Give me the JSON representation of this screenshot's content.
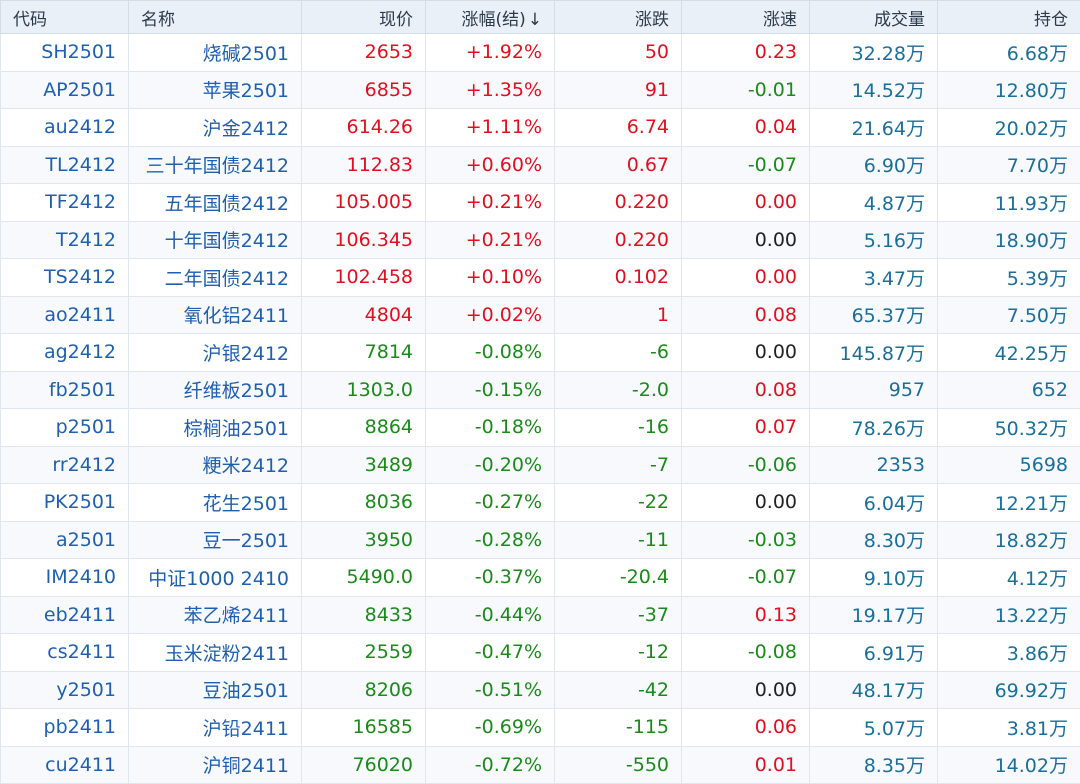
{
  "header": {
    "code": "代码",
    "name": "名称",
    "price": "现价",
    "pct": "涨幅(结)",
    "pct_sort_arrow": "↓",
    "change": "涨跌",
    "speed": "涨速",
    "volume": "成交量",
    "oi": "持仓"
  },
  "colors": {
    "up": "#e0101e",
    "down": "#1a8a1a",
    "flat": "#222222",
    "link": "#1f5fb0"
  },
  "rows": [
    {
      "code": "SH2501",
      "name": "烧碱2501",
      "price": "2653",
      "pct": "+1.92%",
      "change": "50",
      "speed": "0.23",
      "volume": "32.28万",
      "oi": "6.68万",
      "trend": "up",
      "speed_trend": "up"
    },
    {
      "code": "AP2501",
      "name": "苹果2501",
      "price": "6855",
      "pct": "+1.35%",
      "change": "91",
      "speed": "-0.01",
      "volume": "14.52万",
      "oi": "12.80万",
      "trend": "up",
      "speed_trend": "down"
    },
    {
      "code": "au2412",
      "name": "沪金2412",
      "price": "614.26",
      "pct": "+1.11%",
      "change": "6.74",
      "speed": "0.04",
      "volume": "21.64万",
      "oi": "20.02万",
      "trend": "up",
      "speed_trend": "up"
    },
    {
      "code": "TL2412",
      "name": "三十年国债2412",
      "price": "112.83",
      "pct": "+0.60%",
      "change": "0.67",
      "speed": "-0.07",
      "volume": "6.90万",
      "oi": "7.70万",
      "trend": "up",
      "speed_trend": "down"
    },
    {
      "code": "TF2412",
      "name": "五年国债2412",
      "price": "105.005",
      "pct": "+0.21%",
      "change": "0.220",
      "speed": "0.00",
      "volume": "4.87万",
      "oi": "11.93万",
      "trend": "up",
      "speed_trend": "up"
    },
    {
      "code": "T2412",
      "name": "十年国债2412",
      "price": "106.345",
      "pct": "+0.21%",
      "change": "0.220",
      "speed": "0.00",
      "volume": "5.16万",
      "oi": "18.90万",
      "trend": "up",
      "speed_trend": "flat"
    },
    {
      "code": "TS2412",
      "name": "二年国债2412",
      "price": "102.458",
      "pct": "+0.10%",
      "change": "0.102",
      "speed": "0.00",
      "volume": "3.47万",
      "oi": "5.39万",
      "trend": "up",
      "speed_trend": "up"
    },
    {
      "code": "ao2411",
      "name": "氧化铝2411",
      "price": "4804",
      "pct": "+0.02%",
      "change": "1",
      "speed": "0.08",
      "volume": "65.37万",
      "oi": "7.50万",
      "trend": "up",
      "speed_trend": "up"
    },
    {
      "code": "ag2412",
      "name": "沪银2412",
      "price": "7814",
      "pct": "-0.08%",
      "change": "-6",
      "speed": "0.00",
      "volume": "145.87万",
      "oi": "42.25万",
      "trend": "down",
      "speed_trend": "flat"
    },
    {
      "code": "fb2501",
      "name": "纤维板2501",
      "price": "1303.0",
      "pct": "-0.15%",
      "change": "-2.0",
      "speed": "0.08",
      "volume": "957",
      "oi": "652",
      "trend": "down",
      "speed_trend": "up"
    },
    {
      "code": "p2501",
      "name": "棕榈油2501",
      "price": "8864",
      "pct": "-0.18%",
      "change": "-16",
      "speed": "0.07",
      "volume": "78.26万",
      "oi": "50.32万",
      "trend": "down",
      "speed_trend": "up"
    },
    {
      "code": "rr2412",
      "name": "粳米2412",
      "price": "3489",
      "pct": "-0.20%",
      "change": "-7",
      "speed": "-0.06",
      "volume": "2353",
      "oi": "5698",
      "trend": "down",
      "speed_trend": "down"
    },
    {
      "code": "PK2501",
      "name": "花生2501",
      "price": "8036",
      "pct": "-0.27%",
      "change": "-22",
      "speed": "0.00",
      "volume": "6.04万",
      "oi": "12.21万",
      "trend": "down",
      "speed_trend": "flat"
    },
    {
      "code": "a2501",
      "name": "豆一2501",
      "price": "3950",
      "pct": "-0.28%",
      "change": "-11",
      "speed": "-0.03",
      "volume": "8.30万",
      "oi": "18.82万",
      "trend": "down",
      "speed_trend": "down"
    },
    {
      "code": "IM2410",
      "name": "中证1000 2410",
      "price": "5490.0",
      "pct": "-0.37%",
      "change": "-20.4",
      "speed": "-0.07",
      "volume": "9.10万",
      "oi": "4.12万",
      "trend": "down",
      "speed_trend": "down"
    },
    {
      "code": "eb2411",
      "name": "苯乙烯2411",
      "price": "8433",
      "pct": "-0.44%",
      "change": "-37",
      "speed": "0.13",
      "volume": "19.17万",
      "oi": "13.22万",
      "trend": "down",
      "speed_trend": "up"
    },
    {
      "code": "cs2411",
      "name": "玉米淀粉2411",
      "price": "2559",
      "pct": "-0.47%",
      "change": "-12",
      "speed": "-0.08",
      "volume": "6.91万",
      "oi": "3.86万",
      "trend": "down",
      "speed_trend": "down"
    },
    {
      "code": "y2501",
      "name": "豆油2501",
      "price": "8206",
      "pct": "-0.51%",
      "change": "-42",
      "speed": "0.00",
      "volume": "48.17万",
      "oi": "69.92万",
      "trend": "down",
      "speed_trend": "flat"
    },
    {
      "code": "pb2411",
      "name": "沪铅2411",
      "price": "16585",
      "pct": "-0.69%",
      "change": "-115",
      "speed": "0.06",
      "volume": "5.07万",
      "oi": "3.81万",
      "trend": "down",
      "speed_trend": "up"
    },
    {
      "code": "cu2411",
      "name": "沪铜2411",
      "price": "76020",
      "pct": "-0.72%",
      "change": "-550",
      "speed": "0.01",
      "volume": "8.35万",
      "oi": "14.02万",
      "trend": "down",
      "speed_trend": "up"
    }
  ]
}
